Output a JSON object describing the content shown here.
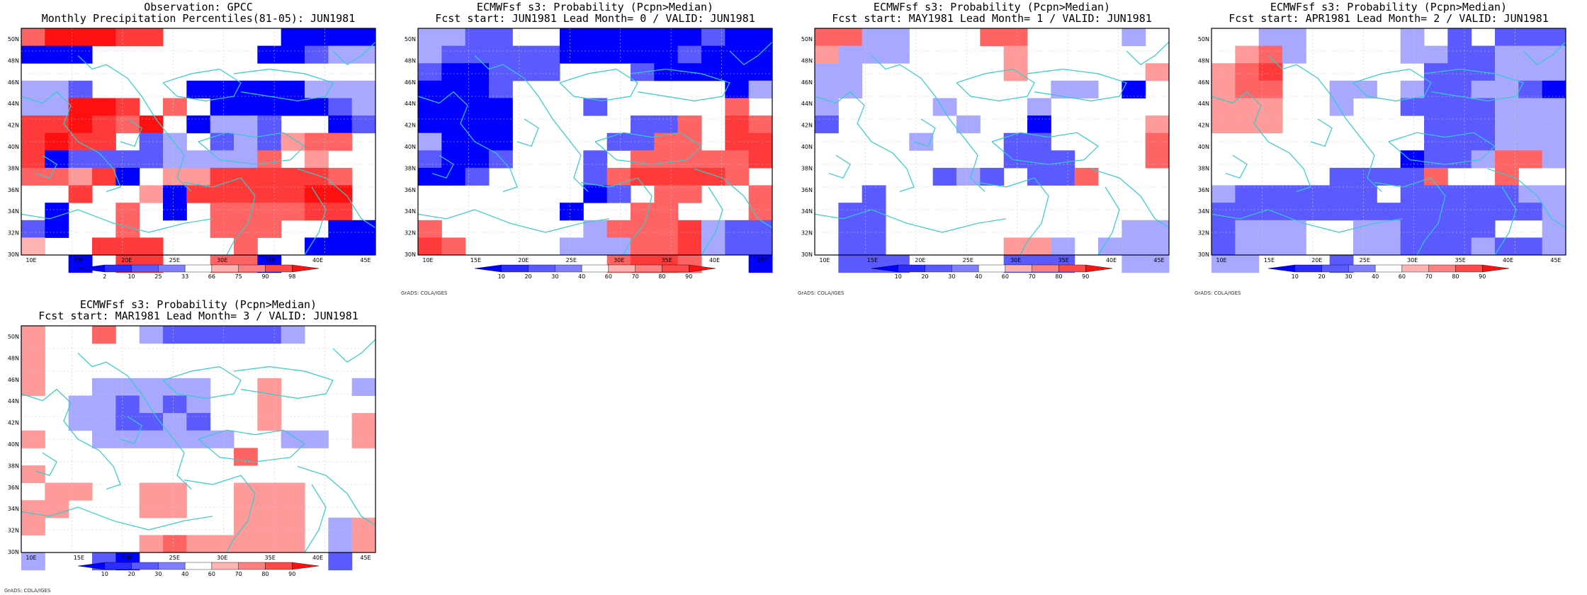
{
  "panels": [
    {
      "title1": "Observation: GPCC",
      "title2": "Monthly Precipitation Percentiles(81-05): JUN1981",
      "credit": "",
      "colorbar_labels": [
        "2",
        "10",
        "25",
        "33",
        "66",
        "75",
        "90",
        "98"
      ],
      "grid": [
        "0 6 8 8 8 7 7 0 0 0 0 0 1 1 1 1",
        "1 1 1 1 0 0 0 0 0 0 0 1 1 2 3 3",
        "3 3 3 2 0 0 0 0 1 1 1 1 1 3 3 3",
        "4 3 3 8 8 7 0 6 0 1 1 1 1 1 2 3",
        "5 7 7 8 7 6 8 0 1 3 3 2 0 0 1 2",
        "6 7 8 7 7 0 2 3 0 2 3 2 5 6 6 0",
        "7 7 1 2 2 2 2 3 3 3 3 6 0 5 0 0",
        "8 6 6 5 7 1 0 5 5 7 7 7 7 7 6 0",
        "9 0 0 7 0 0 5 1 7 7 7 7 7 8 8 0",
        "10 0 1 0 0 6 0 1 0 6 6 6 6 7 7 0",
        "11 2 1 0 0 6 0 0 0 6 6 6 0 0 1 1",
        "12 4 0 0 7 7 7 0 0 0 6 0 0 1 1 1",
        "13 0 0 1 0 7 7 0 0 6 6 1 0 0 0 0"
      ],
      "lat_labels": [
        "50N",
        "48N",
        "46N",
        "44N",
        "42N",
        "40N",
        "38N",
        "36N",
        "34N",
        "32N",
        "30N"
      ],
      "lon_labels": [
        "10E",
        "15E",
        "20E",
        "25E",
        "30E",
        "35E",
        "40E",
        "45E"
      ]
    },
    {
      "title1": "ECMWFsf s3: Probability (Pcpn>Median)",
      "title2": "Fcst start: JUN1981  Lead Month= 0 / VALID: JUN1981",
      "credit": "GrADS: COLA/IGES",
      "colorbar_labels": [
        "10",
        "20",
        "30",
        "40",
        "60",
        "70",
        "80",
        "90"
      ],
      "grid": [
        "0 3 3 2 2 0 0 1 1 1 1 1 1 2 1 1",
        "1 3 2 2 2 2 2 1 1 1 1 1 2 1 1 1",
        "2 2 1 1 2 2 2 0 0 0 2 1 1 1 1 1",
        "3 1 1 1 2 0 0 0 0 0 0 0 0 0 1 3",
        "4 1 1 1 1 0 0 0 2 0 0 0 0 0 6 0",
        "5 1 1 1 1 0 0 0 0 0 2 2 6 0 7 6",
        "6 3 1 1 1 0 0 0 0 2 2 6 6 0 7 7",
        "7 2 1 1 2 0 0 0 2 0 6 6 6 6 6 7",
        "8 1 1 2 0 0 0 0 2 6 7 7 7 7 6 0",
        "9 0 0 0 0 0 0 0 1 2 0 6 6 0 0 6",
        "10 0 0 0 0 0 0 1 0 0 6 6 0 0 0 6",
        "11 6 0 0 0 0 0 0 3 6 6 6 7 3 2 2",
        "12 7 6 0 0 0 0 3 3 3 6 6 7 3 2 2",
        "13 0 0 0 0 0 0 0 0 6 7 7 6 0 0 1"
      ],
      "lat_labels": [
        "50N",
        "48N",
        "46N",
        "44N",
        "42N",
        "40N",
        "38N",
        "36N",
        "34N",
        "32N",
        "30N"
      ],
      "lon_labels": [
        "10E",
        "15E",
        "20E",
        "25E",
        "30E",
        "35E",
        "40E",
        "45E"
      ]
    },
    {
      "title1": "ECMWFsf s3: Probability (Pcpn>Median)",
      "title2": "Fcst start: MAY1981  Lead Month= 1 / VALID: JUN1981",
      "credit": "GrADS: COLA/IGES",
      "colorbar_labels": [
        "10",
        "20",
        "30",
        "40",
        "60",
        "70",
        "80",
        "90"
      ],
      "grid": [
        "0 6 6 3 3 0 0 0 6 6 0 0 0 0 3 0",
        "1 5 3 3 3 0 0 0 0 5 0 0 0 0 0 0",
        "2 3 3 0 0 0 0 0 0 5 0 0 0 0 0 5",
        "3 3 3 0 0 0 0 0 0 0 0 3 3 0 1 0",
        "4 3 0 0 0 0 3 0 0 0 3 0 0 0 0 0",
        "5 2 0 0 0 0 0 3 0 0 1 0 0 0 0 5",
        "6 0 0 0 0 3 0 0 0 2 2 0 0 0 0 6",
        "7 0 0 0 0 0 0 0 0 2 2 2 0 0 0 6",
        "8 0 0 0 0 0 2 3 2 0 2 2 6 0 0 0",
        "9 0 0 2 0 0 0 0 0 0 0 0 0 0 0 0",
        "10 0 2 2 0 0 0 0 0 0 0 0 0 0 0 0",
        "11 0 2 2 0 0 0 0 0 0 0 0 0 0 3 3",
        "12 0 2 2 0 0 0 0 0 5 5 3 0 3 3 3",
        "13 0 2 2 2 0 0 0 0 2 2 2 0 0 3 3"
      ],
      "lat_labels": [
        "50N",
        "48N",
        "46N",
        "44N",
        "42N",
        "40N",
        "38N",
        "36N",
        "34N",
        "32N",
        "30N"
      ],
      "lon_labels": [
        "10E",
        "15E",
        "20E",
        "25E",
        "30E",
        "35E",
        "40E",
        "45E"
      ]
    },
    {
      "title1": "ECMWFsf s3: Probability (Pcpn>Median)",
      "title2": "Fcst start: APR1981  Lead Month= 2 / VALID: JUN1981",
      "credit": "GrADS: COLA/IGES",
      "colorbar_labels": [
        "10",
        "20",
        "30",
        "40",
        "60",
        "70",
        "80",
        "90"
      ],
      "grid": [
        "0 0 0 3 3 0 0 0 0 3 0 2 0 2 2 2",
        "1 0 5 6 3 0 0 0 0 3 3 2 2 3 3 3",
        "2 5 6 7 0 0 0 0 0 0 2 2 2 3 3 3",
        "3 5 6 6 0 0 3 3 0 3 2 2 3 3 2 1",
        "4 5 5 5 0 0 3 0 0 2 2 2 2 3 3 3",
        "5 5 5 5 0 0 0 0 0 0 2 2 2 3 3 3",
        "6 0 0 0 0 0 0 0 0 0 2 2 2 3 3 3",
        "7 0 0 0 0 0 0 0 0 1 2 2 3 6 6 3",
        "8 0 0 0 0 0 2 2 2 2 6 0 0 6 0 0",
        "9 3 2 2 2 2 2 2 0 2 2 2 2 2 3 3",
        "10 2 2 2 2 2 2 2 2 2 2 2 2 2 2 3",
        "11 2 3 3 3 0 0 3 3 2 2 2 2 0 0 3",
        "12 2 3 3 3 0 0 3 3 2 2 2 3 2 2 3",
        "13 3 3 0 0 0 2 0 0 0 0 0 0 0 0 0"
      ],
      "lat_labels": [
        "50N",
        "48N",
        "46N",
        "44N",
        "42N",
        "40N",
        "38N",
        "36N",
        "34N",
        "32N",
        "30N"
      ],
      "lon_labels": [
        "10E",
        "15E",
        "20E",
        "25E",
        "30E",
        "35E",
        "40E",
        "45E"
      ]
    },
    {
      "title1": "ECMWFsf s3: Probability (Pcpn>Median)",
      "title2": "Fcst start: MAR1981  Lead Month= 3 / VALID: JUN1981",
      "credit": "GrADS: COLA/IGES",
      "colorbar_labels": [
        "10",
        "20",
        "30",
        "40",
        "60",
        "70",
        "80",
        "90"
      ],
      "grid": [
        "0 5 0 0 6 0 3 2 2 2 2 2 3 0 0 0",
        "1 5 0 0 0 0 0 0 0 0 0 0 0 0 0 0",
        "2 5 0 0 0 0 0 0 0 0 0 0 0 0 0 0",
        "3 5 0 0 3 3 3 3 3 0 0 5 0 0 0 3",
        "4 0 0 3 3 2 3 2 3 0 0 5 0 0 0 0",
        "5 0 0 3 3 2 2 3 2 0 0 5 0 0 0 5",
        "6 5 0 0 3 3 3 3 3 3 0 0 3 3 0 5",
        "7 0 0 0 0 0 0 0 0 0 6 0 0 0 0 0",
        "8 5 0 0 0 0 0 0 0 0 0 0 0 0 0 0",
        "9 0 5 5 0 0 5 5 0 0 5 5 5 0 0 0",
        "10 5 5 0 0 0 5 5 0 0 5 5 5 0 0 0",
        "11 5 0 0 0 0 0 0 0 0 5 5 5 0 3 5",
        "12 0 0 0 0 0 5 6 5 5 5 5 5 0 3 5",
        "13 3 0 0 2 1 0 0 0 0 0 0 0 0 2 0"
      ],
      "lat_labels": [
        "50N",
        "48N",
        "46N",
        "44N",
        "42N",
        "40N",
        "38N",
        "36N",
        "34N",
        "32N",
        "30N"
      ],
      "lon_labels": [
        "10E",
        "15E",
        "20E",
        "25E",
        "30E",
        "35E",
        "40E",
        "45E"
      ]
    }
  ],
  "palette": [
    "#ffffff",
    "#0000ff",
    "#5a5aff",
    "#a8a8ff",
    "#ffb4b4",
    "#ff9a9a",
    "#ff6464",
    "#ff3a3a",
    "#ff1010"
  ],
  "coast_color": "#33cccc"
}
